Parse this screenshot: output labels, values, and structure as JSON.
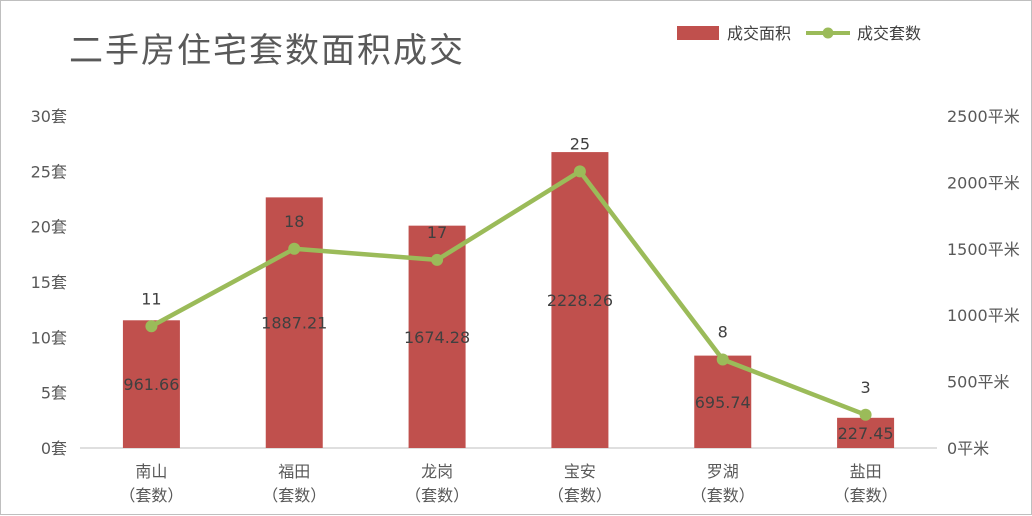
{
  "chart_data": {
    "type": "bar+line",
    "title": "二手房住宅套数面积成交",
    "categories": [
      [
        "南山",
        "（套数）"
      ],
      [
        "福田",
        "（套数）"
      ],
      [
        "龙岗",
        "（套数）"
      ],
      [
        "宝安",
        "（套数）"
      ],
      [
        "罗湖",
        "（套数）"
      ],
      [
        "盐田",
        "（套数）"
      ]
    ],
    "series": [
      {
        "name": "成交面积",
        "kind": "bar",
        "axis": "right",
        "color": "#c0504d",
        "values": [
          961.66,
          1887.21,
          1674.28,
          2228.26,
          695.74,
          227.45
        ],
        "labels": [
          "961.66",
          "1887.21",
          "1674.28",
          "2228.26",
          "695.74",
          "227.45"
        ]
      },
      {
        "name": "成交套数",
        "kind": "line",
        "axis": "left",
        "color": "#9bbb59",
        "values": [
          11,
          18,
          17,
          25,
          8,
          3
        ],
        "labels": [
          "11",
          "18",
          "17",
          "25",
          "8",
          "3"
        ]
      }
    ],
    "left_axis": {
      "ylim": [
        0,
        30
      ],
      "ticks": [
        "0套",
        "5套",
        "10套",
        "15套",
        "20套",
        "25套",
        "30套"
      ]
    },
    "right_axis": {
      "ylim": [
        0,
        2500
      ],
      "ticks": [
        "0平米",
        "500平米",
        "1000平米",
        "1500平米",
        "2000平米",
        "2500平米"
      ]
    },
    "legend_position": "top-right",
    "grid": false
  }
}
